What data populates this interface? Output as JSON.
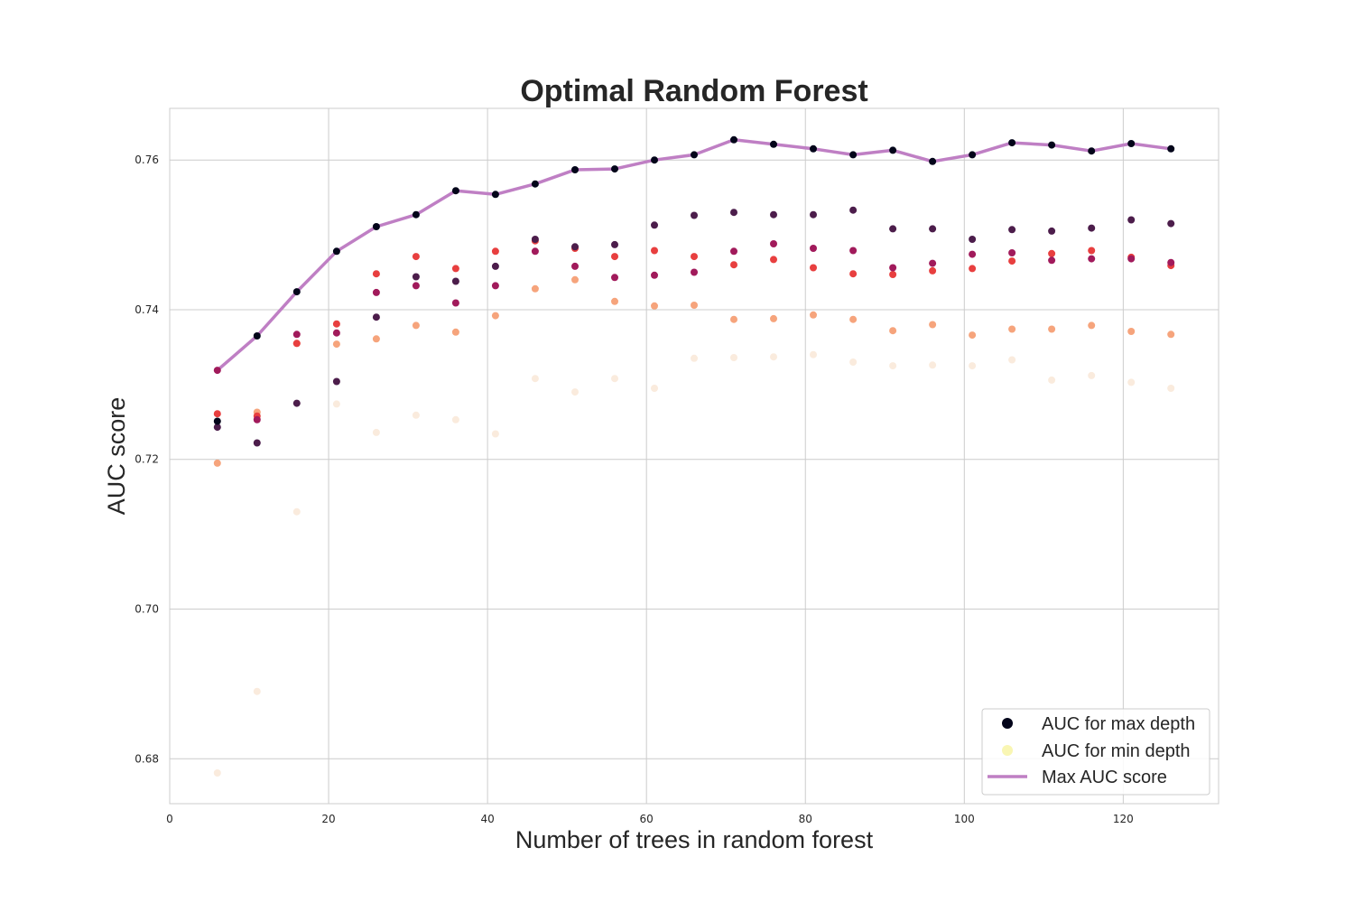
{
  "chart_data": {
    "type": "scatter",
    "title": "Optimal Random Forest",
    "xlabel": "Number of trees in random forest",
    "ylabel": "AUC score",
    "xlim": [
      0,
      132
    ],
    "ylim": [
      0.674,
      0.7669
    ],
    "xticks": [
      "0",
      "20",
      "40",
      "60",
      "80",
      "100",
      "120"
    ],
    "yticks": [
      "0.68",
      "0.70",
      "0.72",
      "0.74",
      "0.76"
    ],
    "grid": true,
    "legend_position": "bottom-right",
    "legend": [
      {
        "label": "AUC for max depth",
        "kind": "marker",
        "color": "#03051a"
      },
      {
        "label": "AUC for min depth",
        "kind": "marker",
        "color": "#faebdd"
      },
      {
        "label": "Max AUC score",
        "kind": "line",
        "color": "#bf7fc4"
      }
    ],
    "x": [
      6,
      11,
      16,
      21,
      26,
      31,
      36,
      41,
      46,
      51,
      56,
      61,
      66,
      71,
      76,
      81,
      86,
      91,
      96,
      101,
      106,
      111,
      116,
      121,
      126
    ],
    "depth_series": [
      {
        "color": "#03051a",
        "values": [
          0.7251,
          0.7365,
          0.7424,
          0.7478,
          0.7511,
          0.7527,
          0.7559,
          0.7554,
          0.7568,
          0.7587,
          0.7588,
          0.76,
          0.7607,
          0.7627,
          0.7621,
          0.7615,
          0.7607,
          0.7613,
          0.7598,
          0.7607,
          0.7623,
          0.762,
          0.7612,
          0.7622,
          0.7615
        ]
      },
      {
        "color": "#4c1d4b",
        "values": [
          0.7243,
          0.7222,
          0.7275,
          0.7304,
          0.739,
          0.7444,
          0.7438,
          0.7458,
          0.7494,
          0.7484,
          0.7487,
          0.7513,
          0.7526,
          0.753,
          0.7527,
          0.7527,
          0.7533,
          0.7508,
          0.7508,
          0.7494,
          0.7507,
          0.7505,
          0.7509,
          0.752,
          0.7515
        ]
      },
      {
        "color": "#a11a5b",
        "values": [
          0.7319,
          0.7253,
          0.7367,
          0.7369,
          0.7423,
          0.7432,
          0.7409,
          0.7432,
          0.7478,
          0.7458,
          0.7443,
          0.7446,
          0.745,
          0.7478,
          0.7488,
          0.7482,
          0.7479,
          0.7456,
          0.7462,
          0.7474,
          0.7476,
          0.7466,
          0.7468,
          0.7468,
          0.7463
        ]
      },
      {
        "color": "#e83f3f",
        "values": [
          0.7261,
          0.7258,
          0.7355,
          0.7381,
          0.7448,
          0.7471,
          0.7455,
          0.7478,
          0.7492,
          0.7482,
          0.7471,
          0.7479,
          0.7471,
          0.746,
          0.7467,
          0.7456,
          0.7448,
          0.7447,
          0.7452,
          0.7455,
          0.7465,
          0.7475,
          0.7479,
          0.747,
          0.7459
        ]
      },
      {
        "color": "#f6a47c",
        "values": [
          0.7195,
          0.7263,
          0.7355,
          0.7354,
          0.7361,
          0.7379,
          0.737,
          0.7392,
          0.7428,
          0.744,
          0.7411,
          0.7405,
          0.7406,
          0.7387,
          0.7388,
          0.7393,
          0.7387,
          0.7372,
          0.738,
          0.7366,
          0.7374,
          0.7374,
          0.7379,
          0.7371,
          0.7367
        ]
      },
      {
        "color": "#faebdd",
        "values": [
          0.6781,
          0.689,
          0.713,
          0.7274,
          0.7236,
          0.7259,
          0.7253,
          0.7234,
          0.7308,
          0.729,
          0.7308,
          0.7295,
          0.7335,
          0.7336,
          0.7337,
          0.734,
          0.733,
          0.7325,
          0.7326,
          0.7325,
          0.7333,
          0.7306,
          0.7312,
          0.7303,
          0.7295
        ]
      }
    ],
    "max_line": {
      "name": "Max AUC score",
      "color": "#bf7fc4",
      "values": [
        0.7319,
        0.7365,
        0.7424,
        0.7478,
        0.7511,
        0.7527,
        0.7559,
        0.7554,
        0.7568,
        0.7587,
        0.7588,
        0.76,
        0.7607,
        0.7627,
        0.7621,
        0.7615,
        0.7607,
        0.7613,
        0.7598,
        0.7607,
        0.7623,
        0.762,
        0.7612,
        0.7622,
        0.7615
      ]
    }
  }
}
